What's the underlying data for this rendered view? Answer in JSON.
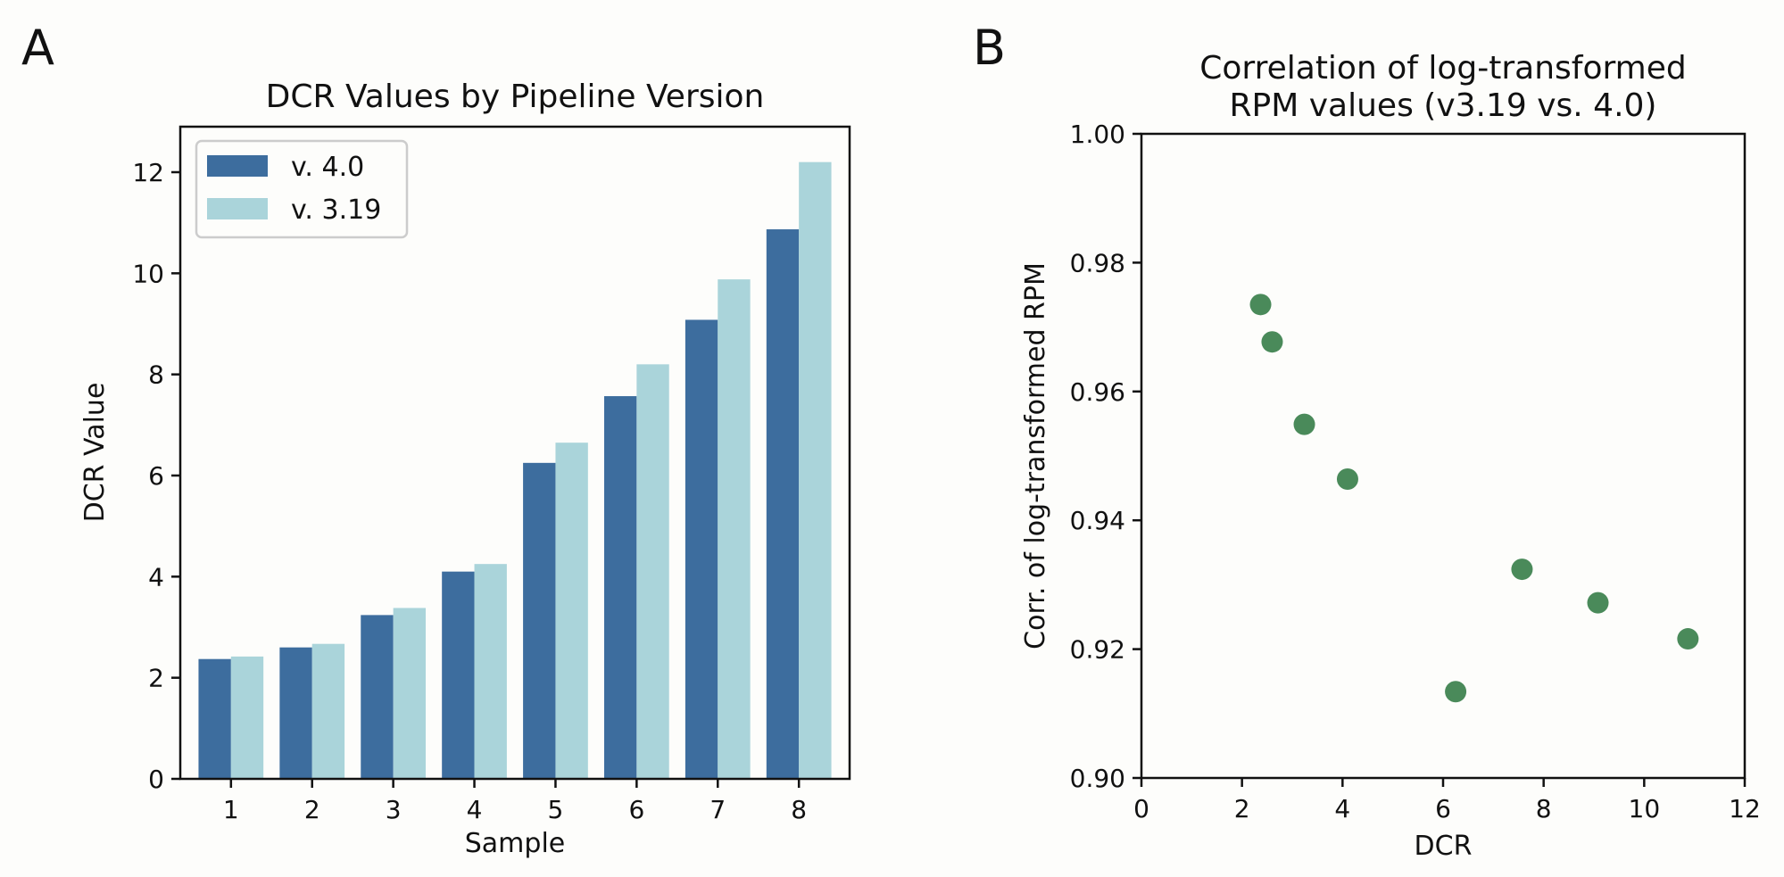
{
  "panels": {
    "a": {
      "letter": "A"
    },
    "b": {
      "letter": "B"
    }
  },
  "chart_data": [
    {
      "type": "bar",
      "title": "DCR Values by Pipeline Version",
      "xlabel": "Sample",
      "ylabel": "DCR Value",
      "categories": [
        "1",
        "2",
        "3",
        "4",
        "5",
        "6",
        "7",
        "8"
      ],
      "ylim": [
        0,
        12.9
      ],
      "yticks": [
        0,
        2,
        4,
        6,
        8,
        10,
        12
      ],
      "series": [
        {
          "name": "v. 4.0",
          "color": "#3d6d9e",
          "values": [
            2.37,
            2.6,
            3.24,
            4.1,
            6.25,
            7.57,
            9.08,
            10.87
          ]
        },
        {
          "name": "v. 3.19",
          "color": "#aad4da",
          "values": [
            2.42,
            2.67,
            3.38,
            4.25,
            6.65,
            8.2,
            9.88,
            12.2
          ]
        }
      ],
      "legend": "top-left",
      "grid": false
    },
    {
      "type": "scatter",
      "title_lines": [
        "Correlation of log-transformed",
        "RPM values (v3.19 vs. 4.0)"
      ],
      "xlabel": "DCR",
      "ylabel": "Corr. of log-transformed RPM",
      "xlim": [
        0,
        12
      ],
      "ylim": [
        0.9,
        1.0
      ],
      "xticks": [
        0,
        2,
        4,
        6,
        8,
        10,
        12
      ],
      "yticks": [
        "0.90",
        "0.92",
        "0.94",
        "0.96",
        "0.98",
        "1.00"
      ],
      "color": "#4a8a5a",
      "points": [
        {
          "x": 2.37,
          "y": 0.9735
        },
        {
          "x": 2.6,
          "y": 0.9677
        },
        {
          "x": 3.24,
          "y": 0.9549
        },
        {
          "x": 4.1,
          "y": 0.9464
        },
        {
          "x": 6.25,
          "y": 0.9134
        },
        {
          "x": 7.57,
          "y": 0.9324
        },
        {
          "x": 9.08,
          "y": 0.9272
        },
        {
          "x": 10.87,
          "y": 0.9216
        }
      ],
      "grid": false
    }
  ]
}
